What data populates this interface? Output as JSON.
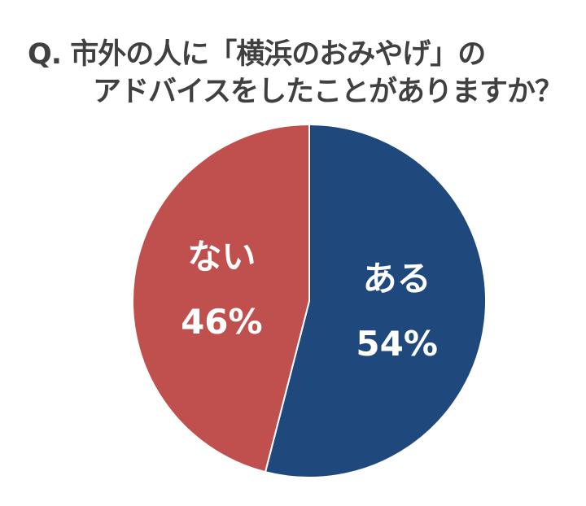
{
  "chart_data": {
    "type": "pie",
    "title_lines": [
      "Q.  市外の人に「横浜のおみやげ」の",
      "アドバイスをしたことがありますか？"
    ],
    "slices": [
      {
        "label": "ある",
        "value": 54,
        "value_label": "54%",
        "color": "#1F497D"
      },
      {
        "label": "ない",
        "value": 46,
        "value_label": "46%",
        "color": "#C0504D"
      }
    ],
    "start": "top",
    "direction": "clockwise",
    "legend": "none"
  }
}
